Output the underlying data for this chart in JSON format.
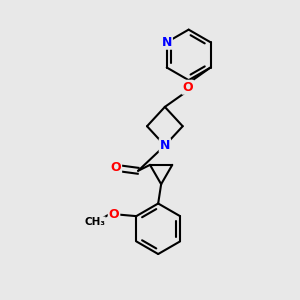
{
  "bg_color": "#e8e8e8",
  "atom_colors": {
    "N": "#0000ff",
    "O": "#ff0000",
    "C": "#000000"
  },
  "bond_color": "#000000",
  "bond_width": 1.5,
  "figsize": [
    3.0,
    3.0
  ],
  "dpi": 100
}
